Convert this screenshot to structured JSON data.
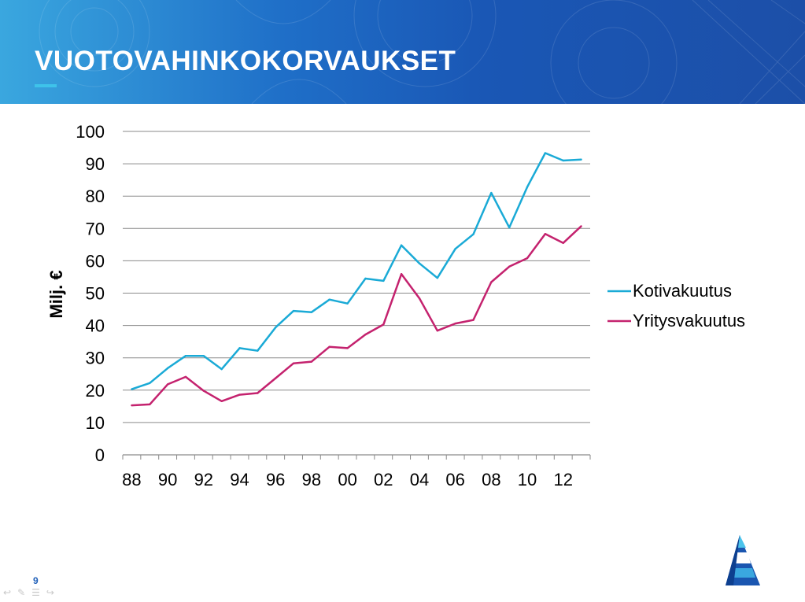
{
  "slide": {
    "title": "VUOTOVAHINKOKORVAUKSET",
    "page_number": "9"
  },
  "colors": {
    "header_start": "#3aa7df",
    "header_end": "#1c4fa8",
    "accent": "#3ec3ea",
    "kotivakuutus": "#1aaad6",
    "yritysvakuutus": "#c4226e",
    "gridline": "#8a8a8a"
  },
  "icons": {
    "nav": [
      "arrow-left-icon",
      "pen-icon",
      "menu-icon",
      "arrow-right-icon"
    ],
    "logo": "pyramid-logo-icon"
  },
  "chart_data": {
    "type": "line",
    "ylabel": "Milj. €",
    "xlabel": "",
    "ylim": [
      0,
      100
    ],
    "yticks": [
      "0",
      "10",
      "20",
      "30",
      "40",
      "50",
      "60",
      "70",
      "80",
      "90",
      "100"
    ],
    "x": [
      "88",
      "89",
      "90",
      "91",
      "92",
      "93",
      "94",
      "95",
      "96",
      "97",
      "98",
      "99",
      "00",
      "01",
      "02",
      "03",
      "04",
      "05",
      "06",
      "07",
      "08",
      "09",
      "10",
      "11",
      "12",
      "13"
    ],
    "xtick_labels": [
      "88",
      "90",
      "92",
      "94",
      "96",
      "98",
      "00",
      "02",
      "04",
      "06",
      "08",
      "10",
      "12"
    ],
    "grid": true,
    "legend_position": "right",
    "series": [
      {
        "name": "Kotivakuutus",
        "color": "#1aaad6",
        "values": [
          20.3,
          22.2,
          26.8,
          30.6,
          30.6,
          26.5,
          33.0,
          32.2,
          39.4,
          44.5,
          44.1,
          48.0,
          46.8,
          54.5,
          53.8,
          64.8,
          59.2,
          54.7,
          63.7,
          68.2,
          81.0,
          70.3,
          82.8,
          93.3,
          91.0,
          91.3
        ]
      },
      {
        "name": "Yritysvakuutus",
        "color": "#c4226e",
        "values": [
          15.3,
          15.6,
          21.8,
          24.1,
          19.8,
          16.6,
          18.6,
          19.1,
          23.7,
          28.3,
          28.8,
          33.4,
          33.0,
          37.2,
          40.3,
          55.9,
          48.4,
          38.4,
          40.6,
          41.7,
          53.4,
          58.2,
          60.8,
          68.3,
          65.5,
          70.7
        ]
      }
    ]
  }
}
